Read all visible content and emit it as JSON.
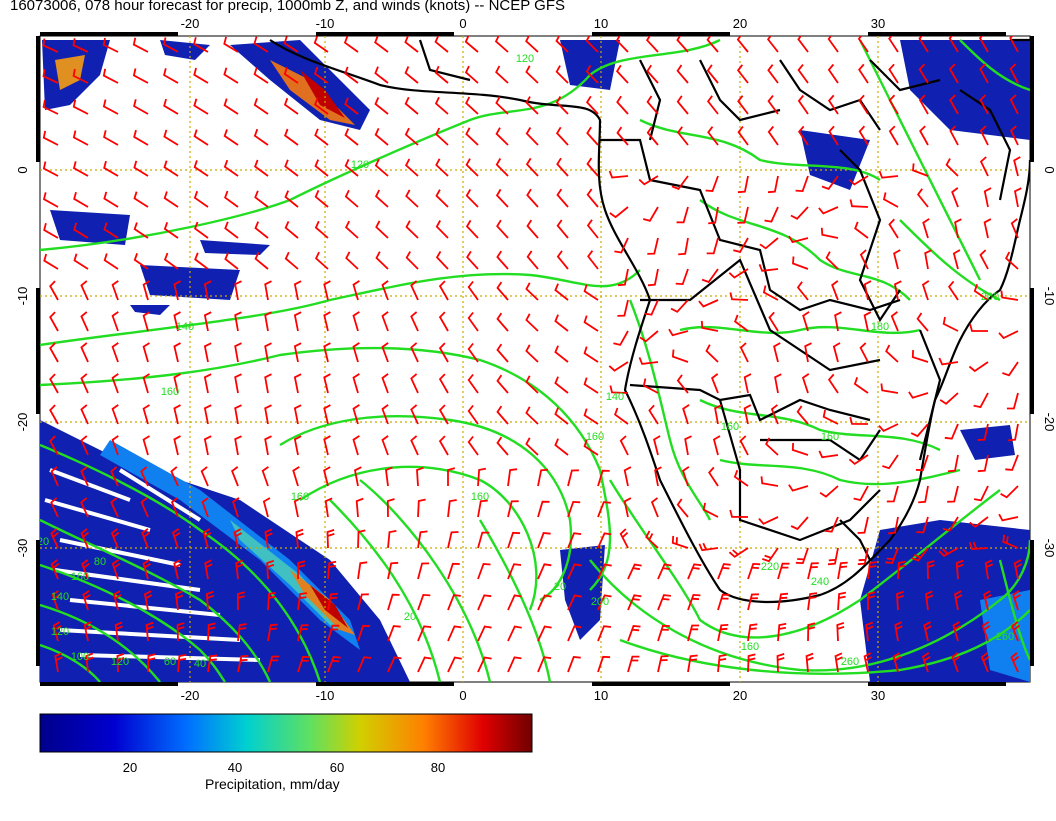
{
  "title": "16073006, 078 hour forecast for precip, 1000mb Z, and winds (knots) -- NCEP GFS",
  "map": {
    "lon_ticks": [
      "-20",
      "-10",
      "0",
      "10",
      "20",
      "30"
    ],
    "lat_ticks": [
      "0",
      "-10",
      "-20",
      "-30"
    ],
    "contour_labels": [
      "120",
      "120",
      "140",
      "160",
      "160",
      "160",
      "140",
      "160",
      "160",
      "160",
      "180",
      "200",
      "220",
      "240",
      "260",
      "260",
      "120",
      "140",
      "160",
      "100",
      "120",
      "120",
      "40",
      "60",
      "80",
      "20",
      "20",
      "200",
      "160"
    ],
    "colors": {
      "wind_barbs": "#ff0000",
      "height_contours": "#22dd22",
      "coastlines": "#000000",
      "gridlines": "#ccaa00"
    }
  },
  "colorbar": {
    "labels": [
      "20",
      "40",
      "60",
      "80"
    ],
    "title": "Precipitation, mm/day",
    "range": [
      0,
      100
    ]
  }
}
